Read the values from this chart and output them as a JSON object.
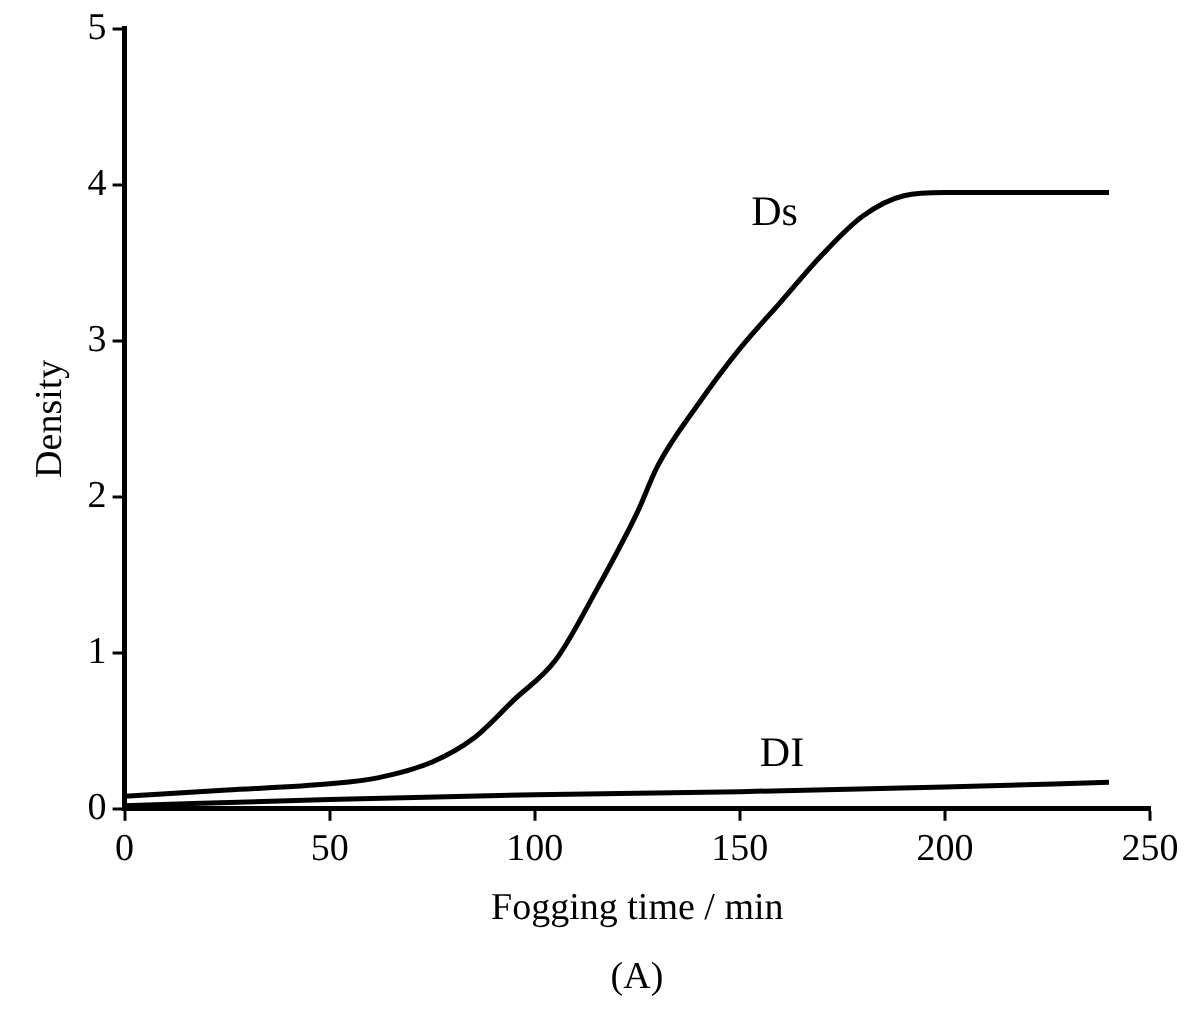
{
  "chart_data": {
    "type": "line",
    "xlabel": "Fogging time / min",
    "ylabel": "Density",
    "annotations": [
      "(A)"
    ],
    "xlim": [
      0,
      250
    ],
    "xticks": [
      0,
      50,
      100,
      150,
      200,
      250
    ],
    "ylim": [
      0,
      5
    ],
    "yticks": [
      0,
      1,
      2,
      3,
      4,
      5
    ],
    "grid": false,
    "legend": false,
    "marker": "none",
    "line_style": "solid",
    "series": [
      {
        "name": "Ds",
        "color": "#000000",
        "x": [
          0,
          25,
          50,
          62,
          75,
          85,
          95,
          105,
          115,
          125,
          130,
          140,
          150,
          160,
          170,
          180,
          190,
          200,
          240
        ],
        "values": [
          0.08,
          0.12,
          0.16,
          0.2,
          0.3,
          0.45,
          0.7,
          0.95,
          1.4,
          1.9,
          2.2,
          2.6,
          2.95,
          3.25,
          3.55,
          3.8,
          3.93,
          3.95,
          3.95
        ]
      },
      {
        "name": "DI",
        "color": "#000000",
        "x": [
          0,
          50,
          100,
          150,
          200,
          240
        ],
        "values": [
          0.02,
          0.06,
          0.09,
          0.11,
          0.14,
          0.17
        ]
      }
    ]
  }
}
